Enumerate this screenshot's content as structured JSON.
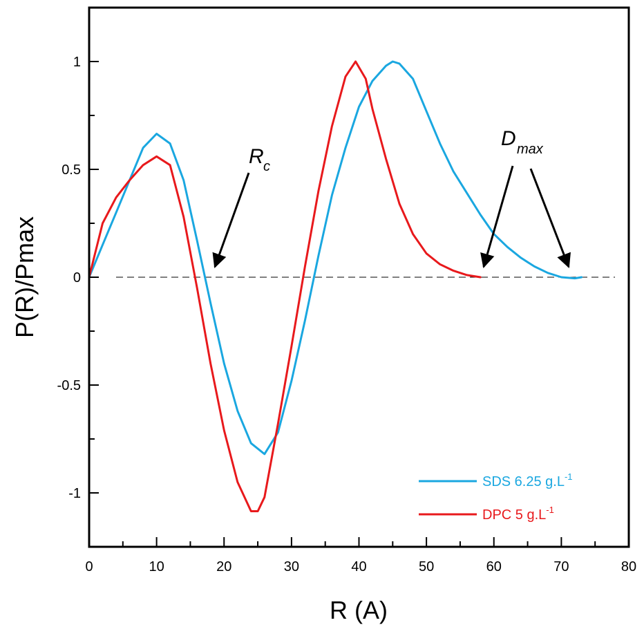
{
  "chart_data": {
    "type": "line",
    "xlabel": "R (A)",
    "ylabel": "P(R)/Pmax",
    "xlim": [
      0,
      80
    ],
    "ylim": [
      -1.25,
      1.25
    ],
    "xticks": [
      "0",
      "10",
      "20",
      "30",
      "40",
      "50",
      "60",
      "70",
      "80"
    ],
    "yticks": [
      "-1",
      "-0.5",
      "0",
      "0.5",
      "1"
    ],
    "grid": false,
    "legend_placement": "bottom-right",
    "reference_line": {
      "y": 0,
      "style": "dashed"
    },
    "series": [
      {
        "name": "SDS 6.25 g.L",
        "name_superscript": "-1",
        "color": "#1aa7e0",
        "points": [
          [
            0,
            0
          ],
          [
            2,
            0.15
          ],
          [
            4,
            0.3
          ],
          [
            6,
            0.45
          ],
          [
            8,
            0.6
          ],
          [
            10,
            0.665
          ],
          [
            12,
            0.62
          ],
          [
            14,
            0.45
          ],
          [
            16,
            0.17
          ],
          [
            18,
            -0.12
          ],
          [
            20,
            -0.4
          ],
          [
            22,
            -0.62
          ],
          [
            24,
            -0.77
          ],
          [
            26,
            -0.82
          ],
          [
            28,
            -0.72
          ],
          [
            30,
            -0.48
          ],
          [
            32,
            -0.2
          ],
          [
            34,
            0.1
          ],
          [
            36,
            0.38
          ],
          [
            38,
            0.6
          ],
          [
            40,
            0.79
          ],
          [
            42,
            0.91
          ],
          [
            44,
            0.98
          ],
          [
            45,
            1.0
          ],
          [
            46,
            0.99
          ],
          [
            48,
            0.92
          ],
          [
            50,
            0.77
          ],
          [
            52,
            0.62
          ],
          [
            54,
            0.49
          ],
          [
            56,
            0.39
          ],
          [
            58,
            0.29
          ],
          [
            60,
            0.2
          ],
          [
            62,
            0.14
          ],
          [
            64,
            0.09
          ],
          [
            66,
            0.05
          ],
          [
            68,
            0.02
          ],
          [
            70,
            0.0
          ],
          [
            72,
            -0.005
          ],
          [
            73,
            0.0
          ]
        ]
      },
      {
        "name": "DPC 5 g.L",
        "name_superscript": "-1",
        "color": "#e8191c",
        "points": [
          [
            0,
            0
          ],
          [
            2,
            0.25
          ],
          [
            4,
            0.37
          ],
          [
            6,
            0.45
          ],
          [
            8,
            0.52
          ],
          [
            10,
            0.56
          ],
          [
            12,
            0.52
          ],
          [
            14,
            0.28
          ],
          [
            16,
            -0.05
          ],
          [
            18,
            -0.4
          ],
          [
            20,
            -0.71
          ],
          [
            22,
            -0.95
          ],
          [
            24,
            -1.085
          ],
          [
            25,
            -1.085
          ],
          [
            26,
            -1.02
          ],
          [
            28,
            -0.68
          ],
          [
            30,
            -0.32
          ],
          [
            32,
            0.05
          ],
          [
            34,
            0.4
          ],
          [
            36,
            0.7
          ],
          [
            38,
            0.93
          ],
          [
            39.5,
            1.0
          ],
          [
            41,
            0.92
          ],
          [
            42,
            0.78
          ],
          [
            44,
            0.55
          ],
          [
            46,
            0.34
          ],
          [
            48,
            0.2
          ],
          [
            50,
            0.11
          ],
          [
            52,
            0.06
          ],
          [
            54,
            0.03
          ],
          [
            56,
            0.01
          ],
          [
            58,
            0.0
          ]
        ]
      }
    ],
    "annotations": [
      {
        "label": "R",
        "subscript": "c",
        "x": 17.5
      },
      {
        "label": "D",
        "subscript": "max",
        "x": [
          58,
          71
        ]
      }
    ]
  }
}
